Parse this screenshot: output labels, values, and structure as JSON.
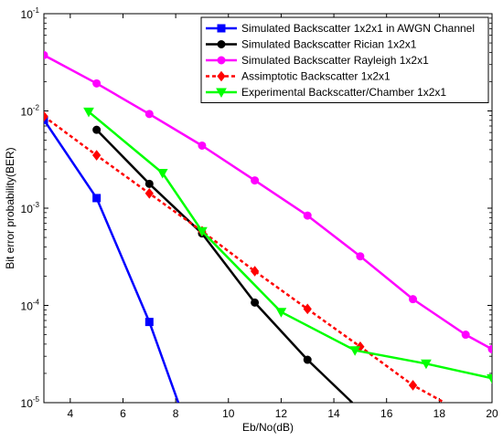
{
  "chart_data": {
    "type": "line",
    "xlabel": "Eb/No(dB)",
    "ylabel": "Bit error probability(BER)",
    "xlim": [
      3,
      20
    ],
    "ylim": [
      1e-05,
      0.1
    ],
    "yscale": "log",
    "grid": false,
    "legend_position": "top-right",
    "x_ticks": [
      4,
      6,
      8,
      10,
      12,
      14,
      16,
      18,
      20
    ],
    "x_tick_labels": [
      "4",
      "6",
      "8",
      "10",
      "12",
      "14",
      "16",
      "18",
      "20"
    ],
    "y_ticks": [
      {
        "value": 1e-05,
        "base": "10",
        "exp": "-5"
      },
      {
        "value": 0.0001,
        "base": "10",
        "exp": "-4"
      },
      {
        "value": 0.001,
        "base": "10",
        "exp": "-3"
      },
      {
        "value": 0.01,
        "base": "10",
        "exp": "-2"
      },
      {
        "value": 0.1,
        "base": "10",
        "exp": "-1"
      }
    ],
    "series": [
      {
        "name": "Simulated Backscatter 1x2x1 in AWGN Channel",
        "color": "#0000ff",
        "marker": "square",
        "line_style": "solid",
        "x": [
          3,
          5,
          7,
          8.1
        ],
        "y": [
          0.0081,
          0.00127,
          6.76e-05,
          1e-05
        ]
      },
      {
        "name": "Simulated Backscatter Rician 1x2x1",
        "color": "#000000",
        "marker": "circle",
        "line_style": "solid",
        "x": [
          5,
          7,
          9,
          11,
          13,
          14.7
        ],
        "y": [
          0.0064,
          0.00178,
          0.00055,
          0.000107,
          2.76e-05,
          1e-05
        ]
      },
      {
        "name": "Simulated Backscatter Rayleigh 1x2x1",
        "color": "#ff00ff",
        "marker": "circle",
        "line_style": "solid",
        "x": [
          3,
          5,
          7,
          9,
          11,
          13,
          15,
          17,
          19,
          20
        ],
        "y": [
          0.0375,
          0.0192,
          0.0093,
          0.0044,
          0.00193,
          0.00084,
          0.00032,
          0.000116,
          5e-05,
          3.55e-05
        ]
      },
      {
        "name": "Assimptotic Backscatter 1x2x1",
        "color": "#ff0000",
        "marker": "diamond",
        "line_style": "dashed",
        "x": [
          3,
          5,
          7,
          9,
          11,
          13,
          15,
          17,
          18.2
        ],
        "y": [
          0.0088,
          0.0035,
          0.00142,
          0.00058,
          0.000225,
          9.2e-05,
          3.76e-05,
          1.51e-05,
          1e-05
        ]
      },
      {
        "name": "Experimental Backscatter/Chamber 1x2x1",
        "color": "#00ff00",
        "marker": "triangle-down",
        "line_style": "solid",
        "x": [
          4.7,
          7.5,
          9,
          12,
          14.8,
          17.5,
          20
        ],
        "y": [
          0.0098,
          0.0023,
          0.00058,
          8.55e-05,
          3.45e-05,
          2.52e-05,
          1.78e-05
        ]
      }
    ]
  }
}
